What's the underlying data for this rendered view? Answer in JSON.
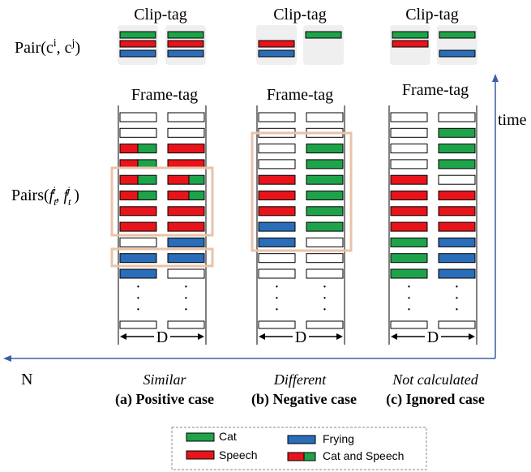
{
  "labels": {
    "clip_tag": "Clip-tag",
    "frame_tag": "Frame-tag",
    "pair_clip_prefix": "Pair(c",
    "pair_clip_i": "i",
    "pair_clip_mid": ", c",
    "pair_clip_j": "j",
    "pair_clip_suffix": ")",
    "pairs_frame_prefix": "Pairs(",
    "pairs_frame_f": "f",
    "pairs_frame_t": "t",
    "pairs_frame_i": "i",
    "pairs_frame_j": "j",
    "pairs_frame_comma": ", ",
    "pairs_frame_suffix": " )",
    "time": "time",
    "n_axis": "N",
    "d_label": "D",
    "dots": "·"
  },
  "cases": [
    {
      "caption_italic": "Similar",
      "caption_bold": "(a) Positive case"
    },
    {
      "caption_italic": "Different",
      "caption_bold": "(b) Negative case"
    },
    {
      "caption_italic": "Not calculated",
      "caption_bold": "(c) Ignored case"
    }
  ],
  "legend": {
    "cat": "Cat",
    "speech": "Speech",
    "frying": "Frying",
    "cat_and_speech": "Cat and Speech"
  },
  "colors": {
    "cat": "#1fa34a",
    "speech": "#e8141b",
    "frying": "#2a6db8",
    "empty": "#ffffff",
    "highlight": "#e9c3aa",
    "panel": "#efefef"
  },
  "clip_tags": [
    [
      [
        "cat",
        "speech",
        "frying"
      ],
      [
        "cat",
        "speech",
        "frying"
      ]
    ],
    [
      [
        null,
        "speech",
        "frying"
      ],
      [
        "cat",
        null,
        null
      ]
    ],
    [
      [
        "cat",
        "speech",
        null
      ],
      [
        "cat",
        null,
        "frying"
      ]
    ]
  ],
  "frame_tags": [
    [
      [
        "empty",
        "empty"
      ],
      [
        "empty",
        "empty"
      ],
      [
        "cat_speech",
        "speech"
      ],
      [
        "cat_speech",
        "speech"
      ],
      [
        "cat_speech",
        "cat_speech"
      ],
      [
        "cat_speech",
        "cat_speech"
      ],
      [
        "speech",
        "speech"
      ],
      [
        "speech",
        "speech"
      ],
      [
        "empty",
        "frying"
      ],
      [
        "frying",
        "frying"
      ],
      [
        "frying",
        "empty"
      ]
    ],
    [
      [
        "empty",
        "empty"
      ],
      [
        "empty",
        "empty"
      ],
      [
        "empty",
        "cat"
      ],
      [
        "empty",
        "cat"
      ],
      [
        "speech",
        "cat"
      ],
      [
        "speech",
        "cat"
      ],
      [
        "speech",
        "cat"
      ],
      [
        "frying",
        "cat"
      ],
      [
        "frying",
        "empty"
      ],
      [
        "empty",
        "empty"
      ],
      [
        "empty",
        "empty"
      ]
    ],
    [
      [
        "empty",
        "empty"
      ],
      [
        "empty",
        "cat"
      ],
      [
        "empty",
        "cat"
      ],
      [
        "empty",
        "cat"
      ],
      [
        "speech",
        "empty"
      ],
      [
        "speech",
        "speech"
      ],
      [
        "speech",
        "speech"
      ],
      [
        "speech",
        "speech"
      ],
      [
        "cat",
        "frying"
      ],
      [
        "cat",
        "frying"
      ],
      [
        "cat",
        "frying"
      ]
    ]
  ]
}
